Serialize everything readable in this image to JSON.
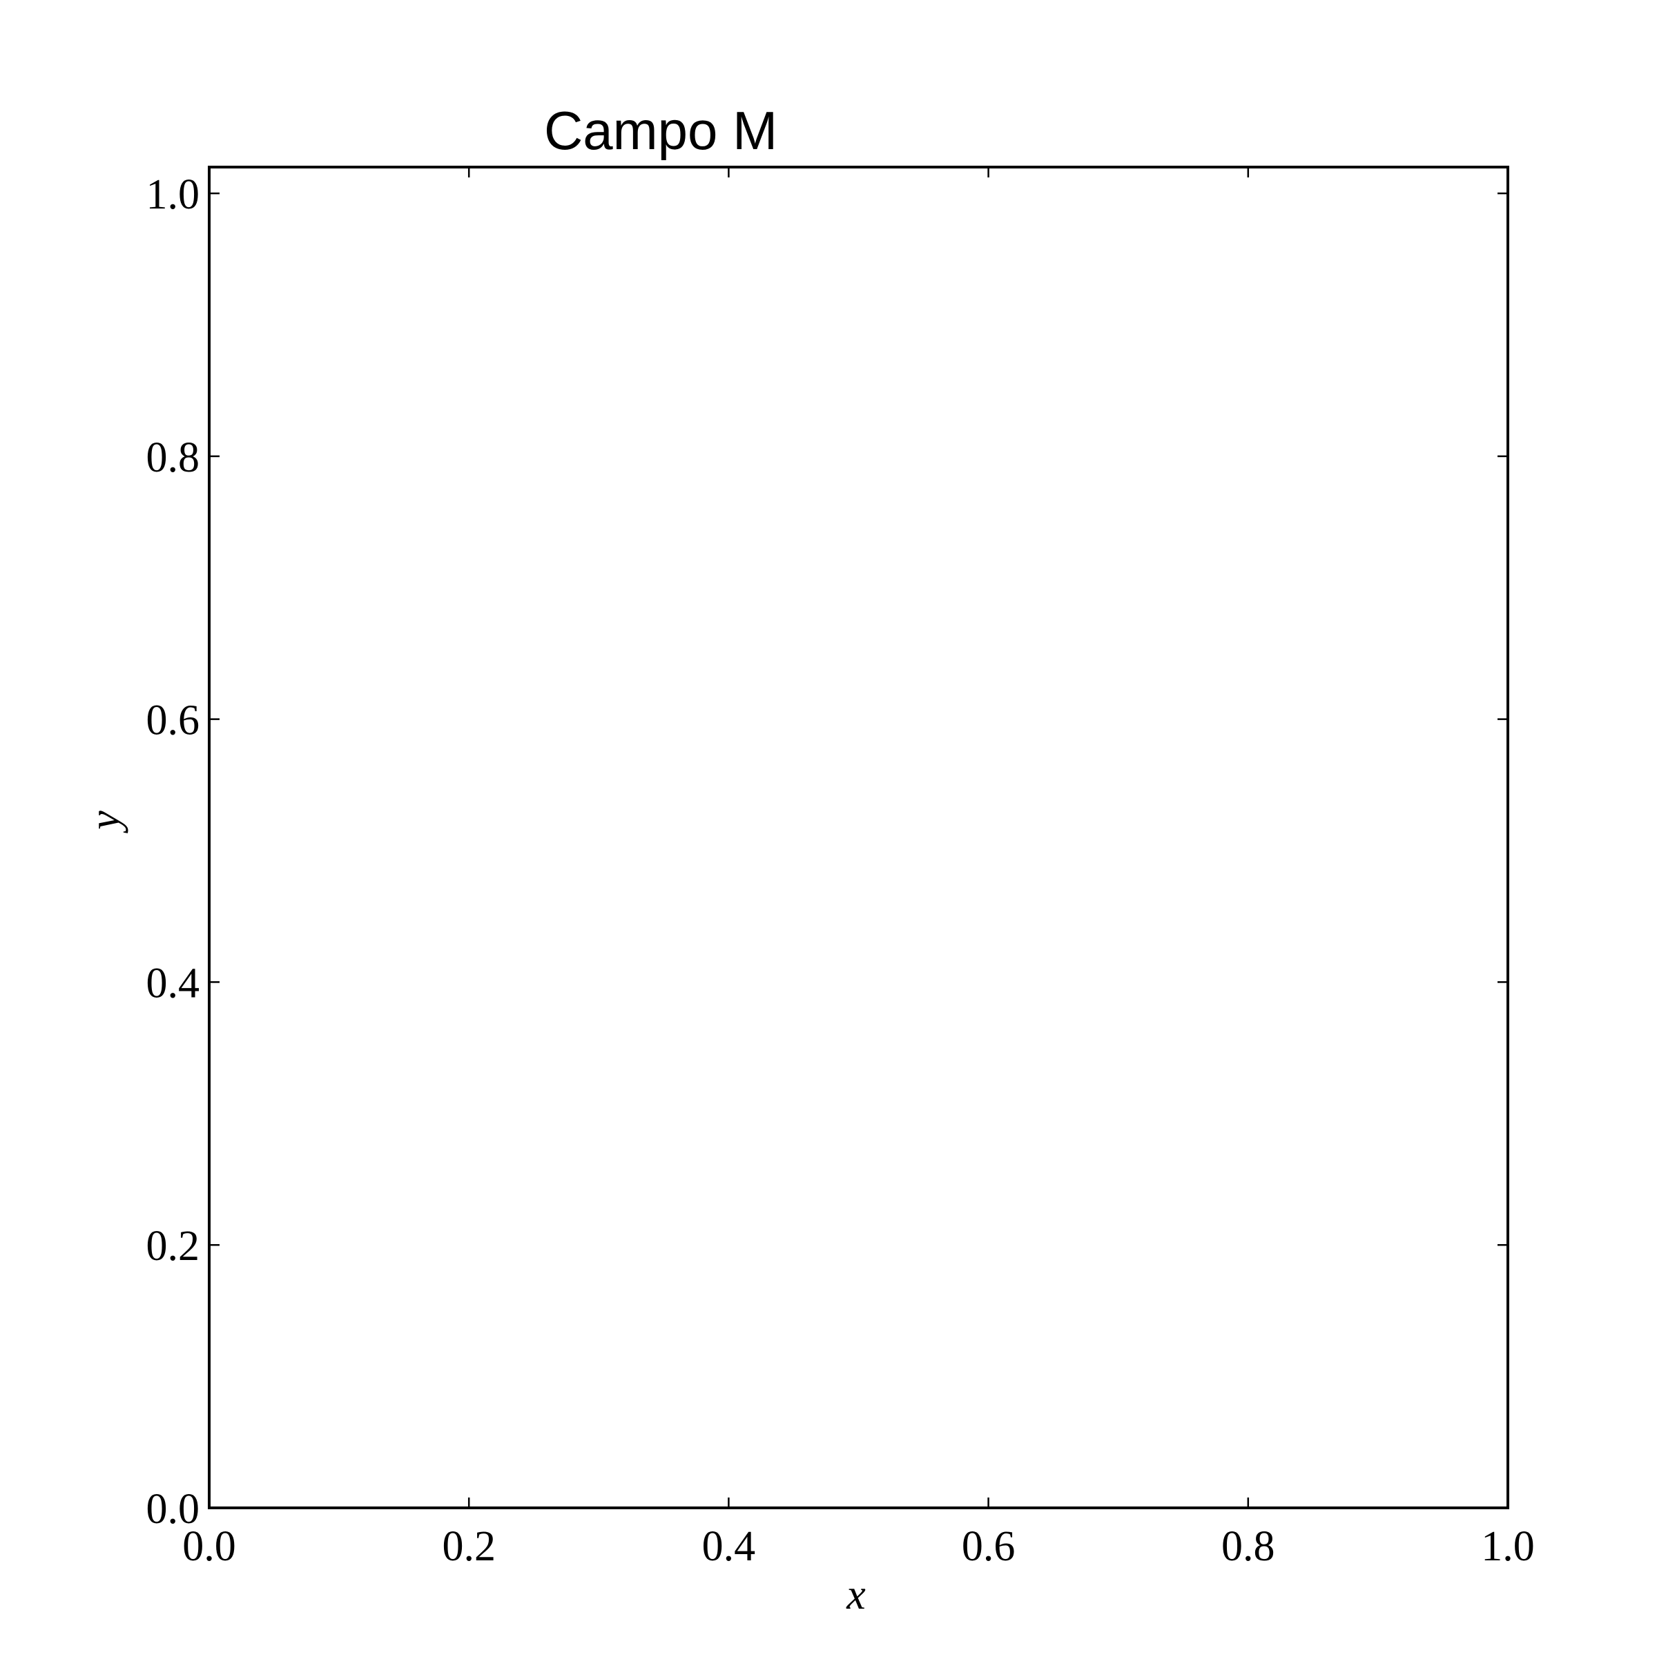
{
  "chart_data": {
    "type": "scatter",
    "title": "Campo M",
    "xlabel": "x",
    "ylabel": "y",
    "xlim": [
      0.0,
      1.0
    ],
    "ylim": [
      0.0,
      1.02
    ],
    "xticks": [
      0.0,
      0.2,
      0.4,
      0.6,
      0.8,
      1.0
    ],
    "yticks": [
      0.0,
      0.2,
      0.4,
      0.6,
      0.8,
      1.0
    ],
    "xtick_labels": [
      "0.0",
      "0.2",
      "0.4",
      "0.6",
      "0.8",
      "1.0"
    ],
    "ytick_labels": [
      "0.0",
      "0.2",
      "0.4",
      "0.6",
      "0.8",
      "1.0"
    ],
    "series": [],
    "grid": false,
    "colors": {
      "frame": "#000000",
      "background": "#ffffff"
    }
  }
}
